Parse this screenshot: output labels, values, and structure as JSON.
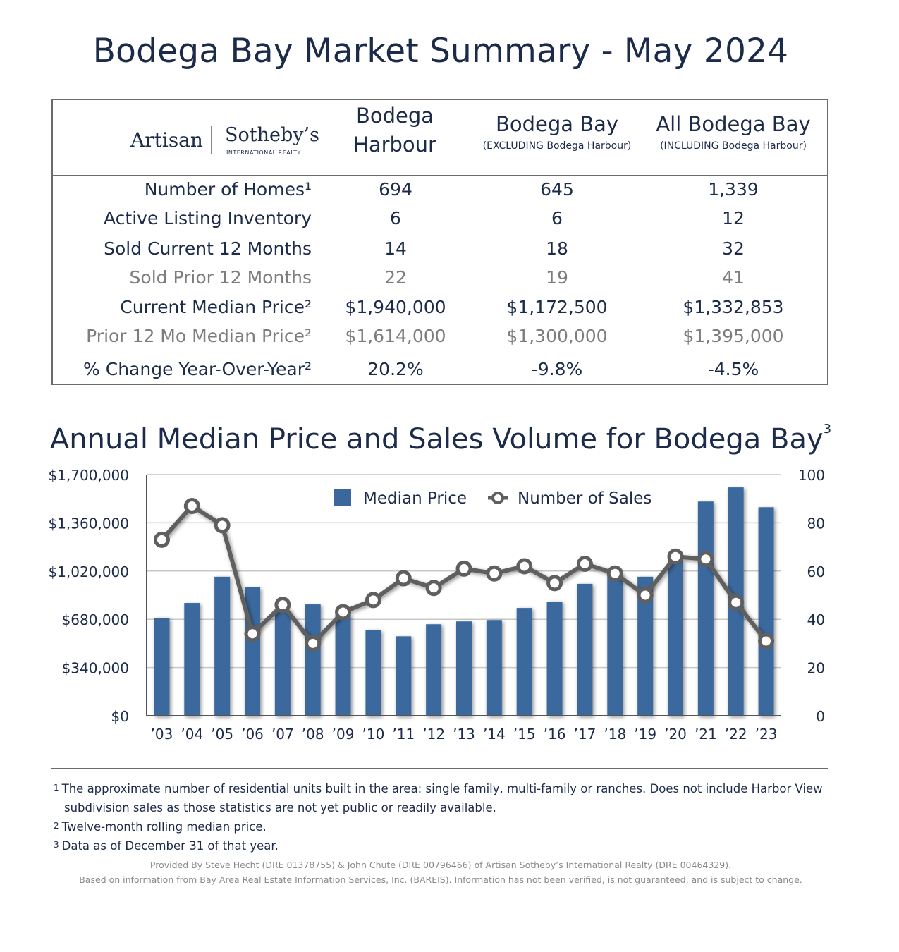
{
  "title": "Bodega Bay Market Summary - May 2024",
  "logo": {
    "left": "Artisan",
    "right": "Sotheby’s",
    "tagline": "INTERNATIONAL REALTY"
  },
  "columns": [
    {
      "line1": "Bodega",
      "line2": "Harbour",
      "sub": ""
    },
    {
      "line1": "Bodega Bay",
      "line2": "",
      "sub": "(EXCLUDING Bodega Harbour)"
    },
    {
      "line1": "All Bodega Bay",
      "line2": "",
      "sub": "(INCLUDING Bodega Harbour)"
    }
  ],
  "rows": [
    {
      "label": "Number of Homes¹",
      "values": [
        "694",
        "645",
        "1,339"
      ]
    },
    {
      "label": "Active Listing Inventory",
      "values": [
        "6",
        "6",
        "12"
      ]
    },
    {
      "label": "Sold Current 12 Months",
      "values": [
        "14",
        "18",
        "32"
      ]
    },
    {
      "label": "Sold Prior 12 Months",
      "values": [
        "22",
        "19",
        "41"
      ]
    },
    {
      "label": "Current Median Price²",
      "values": [
        "$1,940,000",
        "$1,172,500",
        "$1,332,853"
      ]
    },
    {
      "label": "Prior 12 Mo Median Price²",
      "values": [
        "$1,614,000",
        "$1,300,000",
        "$1,395,000"
      ]
    },
    {
      "label": "% Change Year-Over-Year²",
      "values": [
        "20.2%",
        "-9.8%",
        "-4.5%"
      ]
    }
  ],
  "chart_data": {
    "type": "bar",
    "title": "Annual Median Price and Sales Volume for Bodega Bay",
    "title_sup": "3",
    "categories": [
      "’03",
      "’04",
      "’05",
      "’06",
      "’07",
      "’08",
      "’09",
      "’10",
      "’11",
      "’12",
      "’13",
      "’14",
      "’15",
      "’16",
      "’17",
      "’18",
      "’19",
      "’20",
      "’21",
      "’22",
      "’23"
    ],
    "series": [
      {
        "name": "Median Price",
        "type": "bar",
        "axis": "left",
        "values": [
          690000,
          795000,
          980000,
          905000,
          740000,
          785000,
          720000,
          605000,
          560000,
          645000,
          665000,
          675000,
          760000,
          805000,
          930000,
          1010000,
          980000,
          1100000,
          1510000,
          1610000,
          1470000
        ]
      },
      {
        "name": "Number of Sales",
        "type": "line",
        "axis": "right",
        "values": [
          73,
          87,
          79,
          34,
          46,
          30,
          43,
          48,
          57,
          53,
          61,
          59,
          62,
          55,
          63,
          59,
          50,
          66,
          65,
          47,
          31
        ]
      }
    ],
    "y_left": {
      "range": [
        0,
        1700000
      ],
      "ticks": [
        "$0",
        "$340,000",
        "$680,000",
        "$1,020,000",
        "$1,360,000",
        "$1,700,000"
      ]
    },
    "y_right": {
      "range": [
        0,
        100
      ],
      "ticks": [
        "0",
        "20",
        "40",
        "60",
        "80",
        "100"
      ]
    },
    "grid": true,
    "legend": "top-center",
    "colors": {
      "bar": "#3b679d",
      "line": "#5f5f5f",
      "grid": "#c8c8c8",
      "axis": "#555555"
    }
  },
  "footnotes": [
    {
      "num": "1",
      "text": "The approximate number of residential units built in the area: single family, multi-family or ranches. Does not include Harbor View"
    },
    {
      "num": "",
      "text": "subdivision sales as those statistics are not yet public or readily available."
    },
    {
      "num": "2",
      "text": "Twelve-month rolling median price."
    },
    {
      "num": "3",
      "text": "Data as of December 31 of that year."
    }
  ],
  "credits": [
    "Provided By Steve Hecht (DRE 01378755) & John Chute (DRE 00796466) of Artisan Sotheby’s International Realty (DRE 00464329).",
    "Based on information from Bay Area Real Estate Information Services, Inc. (BAREIS). Information has not been verified, is not guaranteed, and is subject to change."
  ]
}
